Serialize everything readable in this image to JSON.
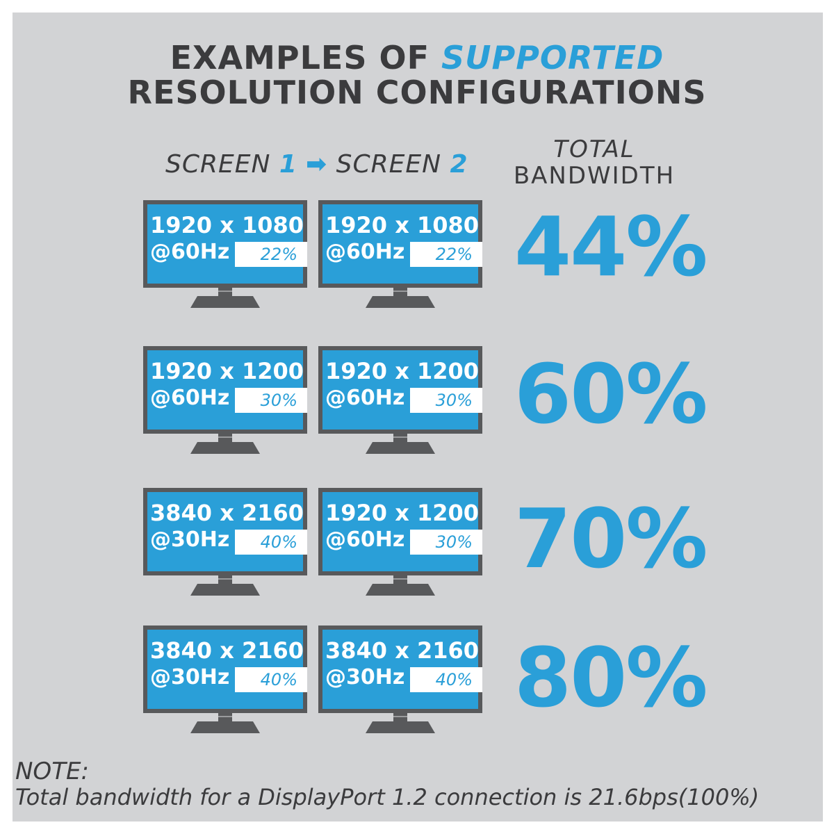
{
  "title": {
    "line1_prefix": "EXAMPLES OF",
    "line1_accent": "SUPPORTED",
    "line2": "RESOLUTION CONFIGURATIONS"
  },
  "headers": {
    "screen1_label": "SCREEN",
    "screen1_num": "1",
    "arrow": "➡",
    "screen2_label": "SCREEN",
    "screen2_num": "2",
    "total_line1": "TOTAL",
    "total_line2": "BANDWIDTH"
  },
  "rows": [
    {
      "screen1": {
        "resolution": "1920 x 1080",
        "refresh": "@60Hz",
        "percent": "22%"
      },
      "screen2": {
        "resolution": "1920 x 1080",
        "refresh": "@60Hz",
        "percent": "22%"
      },
      "total": "44%"
    },
    {
      "screen1": {
        "resolution": "1920 x 1200",
        "refresh": "@60Hz",
        "percent": "30%"
      },
      "screen2": {
        "resolution": "1920 x 1200",
        "refresh": "@60Hz",
        "percent": "30%"
      },
      "total": "60%"
    },
    {
      "screen1": {
        "resolution": "3840 x 2160",
        "refresh": "@30Hz",
        "percent": "40%"
      },
      "screen2": {
        "resolution": "1920 x 1200",
        "refresh": "@60Hz",
        "percent": "30%"
      },
      "total": "70%"
    },
    {
      "screen1": {
        "resolution": "3840 x 2160",
        "refresh": "@30Hz",
        "percent": "40%"
      },
      "screen2": {
        "resolution": "3840 x 2160",
        "refresh": "@30Hz",
        "percent": "40%"
      },
      "total": "80%"
    }
  ],
  "note": {
    "label": "NOTE:",
    "text": "Total bandwidth for a DisplayPort 1.2 connection is 21.6bps(100%)"
  },
  "colors": {
    "accent": "#2a9fd8",
    "text_dark": "#3b3b3d",
    "background": "#d2d3d5",
    "monitor": "#58595b"
  }
}
